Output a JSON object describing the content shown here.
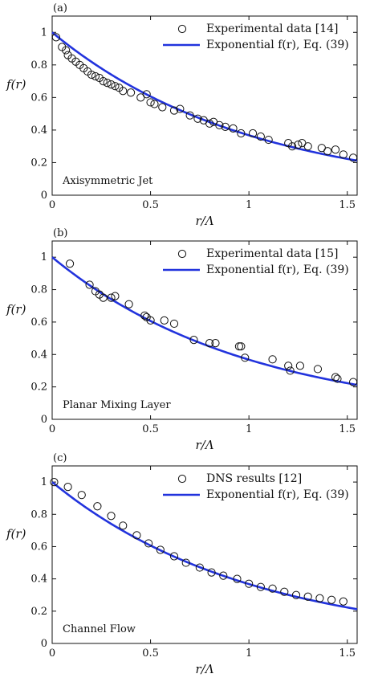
{
  "chart_data": [
    {
      "type": "scatter",
      "panel_label": "(a)",
      "annotation": "Axisymmetric Jet",
      "xlabel": "r/Λ",
      "ylabel": "f(r)",
      "xlim": [
        0,
        1.55
      ],
      "ylim": [
        0,
        1.1
      ],
      "xticks": [
        "0",
        "0.5",
        "1",
        "1.5"
      ],
      "yticks": [
        "0",
        "0.2",
        "0.4",
        "0.6",
        "0.8",
        "1"
      ],
      "legend_position": "top-right",
      "series": [
        {
          "name": "Experimental data [14]",
          "marker": "circle",
          "x": [
            0.02,
            0.05,
            0.07,
            0.08,
            0.1,
            0.12,
            0.14,
            0.16,
            0.18,
            0.2,
            0.22,
            0.24,
            0.26,
            0.28,
            0.3,
            0.32,
            0.34,
            0.36,
            0.4,
            0.45,
            0.48,
            0.5,
            0.52,
            0.56,
            0.62,
            0.65,
            0.7,
            0.74,
            0.77,
            0.8,
            0.82,
            0.85,
            0.88,
            0.92,
            0.96,
            1.02,
            1.06,
            1.1,
            1.2,
            1.22,
            1.25,
            1.27,
            1.3,
            1.37,
            1.4,
            1.44,
            1.48,
            1.53
          ],
          "y": [
            0.97,
            0.91,
            0.89,
            0.86,
            0.84,
            0.82,
            0.8,
            0.78,
            0.76,
            0.74,
            0.73,
            0.72,
            0.7,
            0.69,
            0.68,
            0.67,
            0.66,
            0.64,
            0.63,
            0.6,
            0.62,
            0.57,
            0.56,
            0.54,
            0.52,
            0.53,
            0.49,
            0.47,
            0.46,
            0.44,
            0.45,
            0.43,
            0.42,
            0.41,
            0.38,
            0.38,
            0.36,
            0.34,
            0.32,
            0.3,
            0.31,
            0.32,
            0.3,
            0.29,
            0.27,
            0.28,
            0.25,
            0.23
          ]
        },
        {
          "name": "Exponential f(r), Eq. (39)",
          "style": "line",
          "color": "#2233dd",
          "function": "exp(-x)"
        }
      ]
    },
    {
      "type": "scatter",
      "panel_label": "(b)",
      "annotation": "Planar Mixing Layer",
      "xlabel": "r/Λ",
      "ylabel": "f(r)",
      "xlim": [
        0,
        1.55
      ],
      "ylim": [
        0,
        1.1
      ],
      "xticks": [
        "0",
        "0.5",
        "1",
        "1.5"
      ],
      "yticks": [
        "0",
        "0.2",
        "0.4",
        "0.6",
        "0.8",
        "1"
      ],
      "legend_position": "top-right",
      "series": [
        {
          "name": "Experimental data [15]",
          "marker": "circle",
          "x": [
            0.09,
            0.19,
            0.22,
            0.24,
            0.26,
            0.3,
            0.32,
            0.39,
            0.47,
            0.48,
            0.5,
            0.57,
            0.62,
            0.72,
            0.8,
            0.83,
            0.95,
            0.96,
            0.98,
            1.12,
            1.2,
            1.21,
            1.26,
            1.35,
            1.44,
            1.45,
            1.53
          ],
          "y": [
            0.96,
            0.83,
            0.79,
            0.77,
            0.75,
            0.75,
            0.76,
            0.71,
            0.64,
            0.63,
            0.61,
            0.61,
            0.59,
            0.49,
            0.47,
            0.47,
            0.45,
            0.45,
            0.38,
            0.37,
            0.33,
            0.3,
            0.33,
            0.31,
            0.26,
            0.25,
            0.23
          ]
        },
        {
          "name": "Exponential f(r), Eq. (39)",
          "style": "line",
          "color": "#2233dd",
          "function": "exp(-x)"
        }
      ]
    },
    {
      "type": "scatter",
      "panel_label": "(c)",
      "annotation": "Channel Flow",
      "xlabel": "r/Λ",
      "ylabel": "f(r)",
      "xlim": [
        0,
        1.55
      ],
      "ylim": [
        0,
        1.1
      ],
      "xticks": [
        "0",
        "0.5",
        "1",
        "1.5"
      ],
      "yticks": [
        "0",
        "0.2",
        "0.4",
        "0.6",
        "0.8",
        "1"
      ],
      "legend_position": "top-right",
      "series": [
        {
          "name": "DNS results [12]",
          "marker": "circle",
          "x": [
            0.01,
            0.08,
            0.15,
            0.23,
            0.3,
            0.36,
            0.43,
            0.49,
            0.55,
            0.62,
            0.68,
            0.75,
            0.81,
            0.87,
            0.94,
            1.0,
            1.06,
            1.12,
            1.18,
            1.24,
            1.3,
            1.36,
            1.42,
            1.48
          ],
          "y": [
            1.0,
            0.97,
            0.92,
            0.85,
            0.79,
            0.73,
            0.67,
            0.62,
            0.58,
            0.54,
            0.5,
            0.47,
            0.44,
            0.42,
            0.4,
            0.37,
            0.35,
            0.34,
            0.32,
            0.3,
            0.29,
            0.28,
            0.27,
            0.26
          ]
        },
        {
          "name": "Exponential f(r), Eq. (39)",
          "style": "line",
          "color": "#2233dd",
          "function": "exp(-x)"
        }
      ]
    }
  ]
}
